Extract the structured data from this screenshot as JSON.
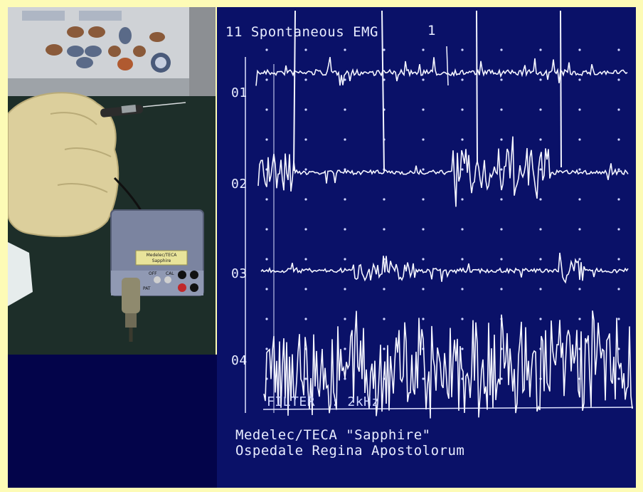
{
  "emg": {
    "title": "11 Spontaneous EMG",
    "page": "1",
    "trace_labels": [
      "01",
      "02",
      "03",
      "04"
    ],
    "filter": "FILTER  : 2kHz",
    "footer_line1": "Medelec/TECA \"Sapphire\"",
    "footer_line2": "Ospedale Regina Apostolorum"
  },
  "device": {
    "label_line1": "Medelec/TECA",
    "label_line2": "Sapphire",
    "port_labels": [
      "OFF",
      "CAL",
      "PAT"
    ]
  },
  "colors": {
    "border": "#fdfbb6",
    "screen": "#0a1168",
    "trace": "#f5f6ff",
    "photo_bg": "#1d2e29"
  }
}
